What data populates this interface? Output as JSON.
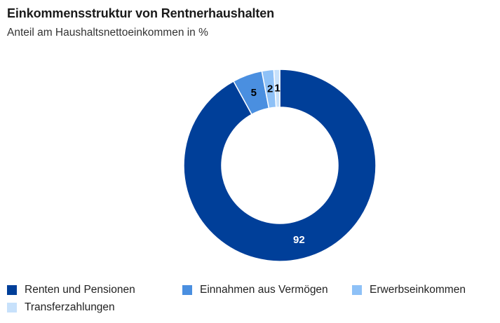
{
  "chart_data": {
    "type": "pie",
    "variant": "donut",
    "title": "Einkommensstruktur von Rentnerhaushalten",
    "subtitle": "Anteil am Haushaltsnettoeinkommen in %",
    "unit": "%",
    "categories": [
      "Renten und Pensionen",
      "Einnahmen aus Vermögen",
      "Erwerbseinkommen",
      "Transferzahlungen"
    ],
    "values": [
      92,
      5,
      2,
      1
    ],
    "data_labels": [
      "92",
      "5",
      "2",
      "1"
    ],
    "colors": [
      "#003f99",
      "#4a8fe0",
      "#8ec1f7",
      "#c7e1fb"
    ],
    "label_colors": [
      "#ffffff",
      "#000000",
      "#000000",
      "#000000"
    ],
    "legend_position": "bottom",
    "start_angle": "top",
    "direction": "clockwise"
  }
}
